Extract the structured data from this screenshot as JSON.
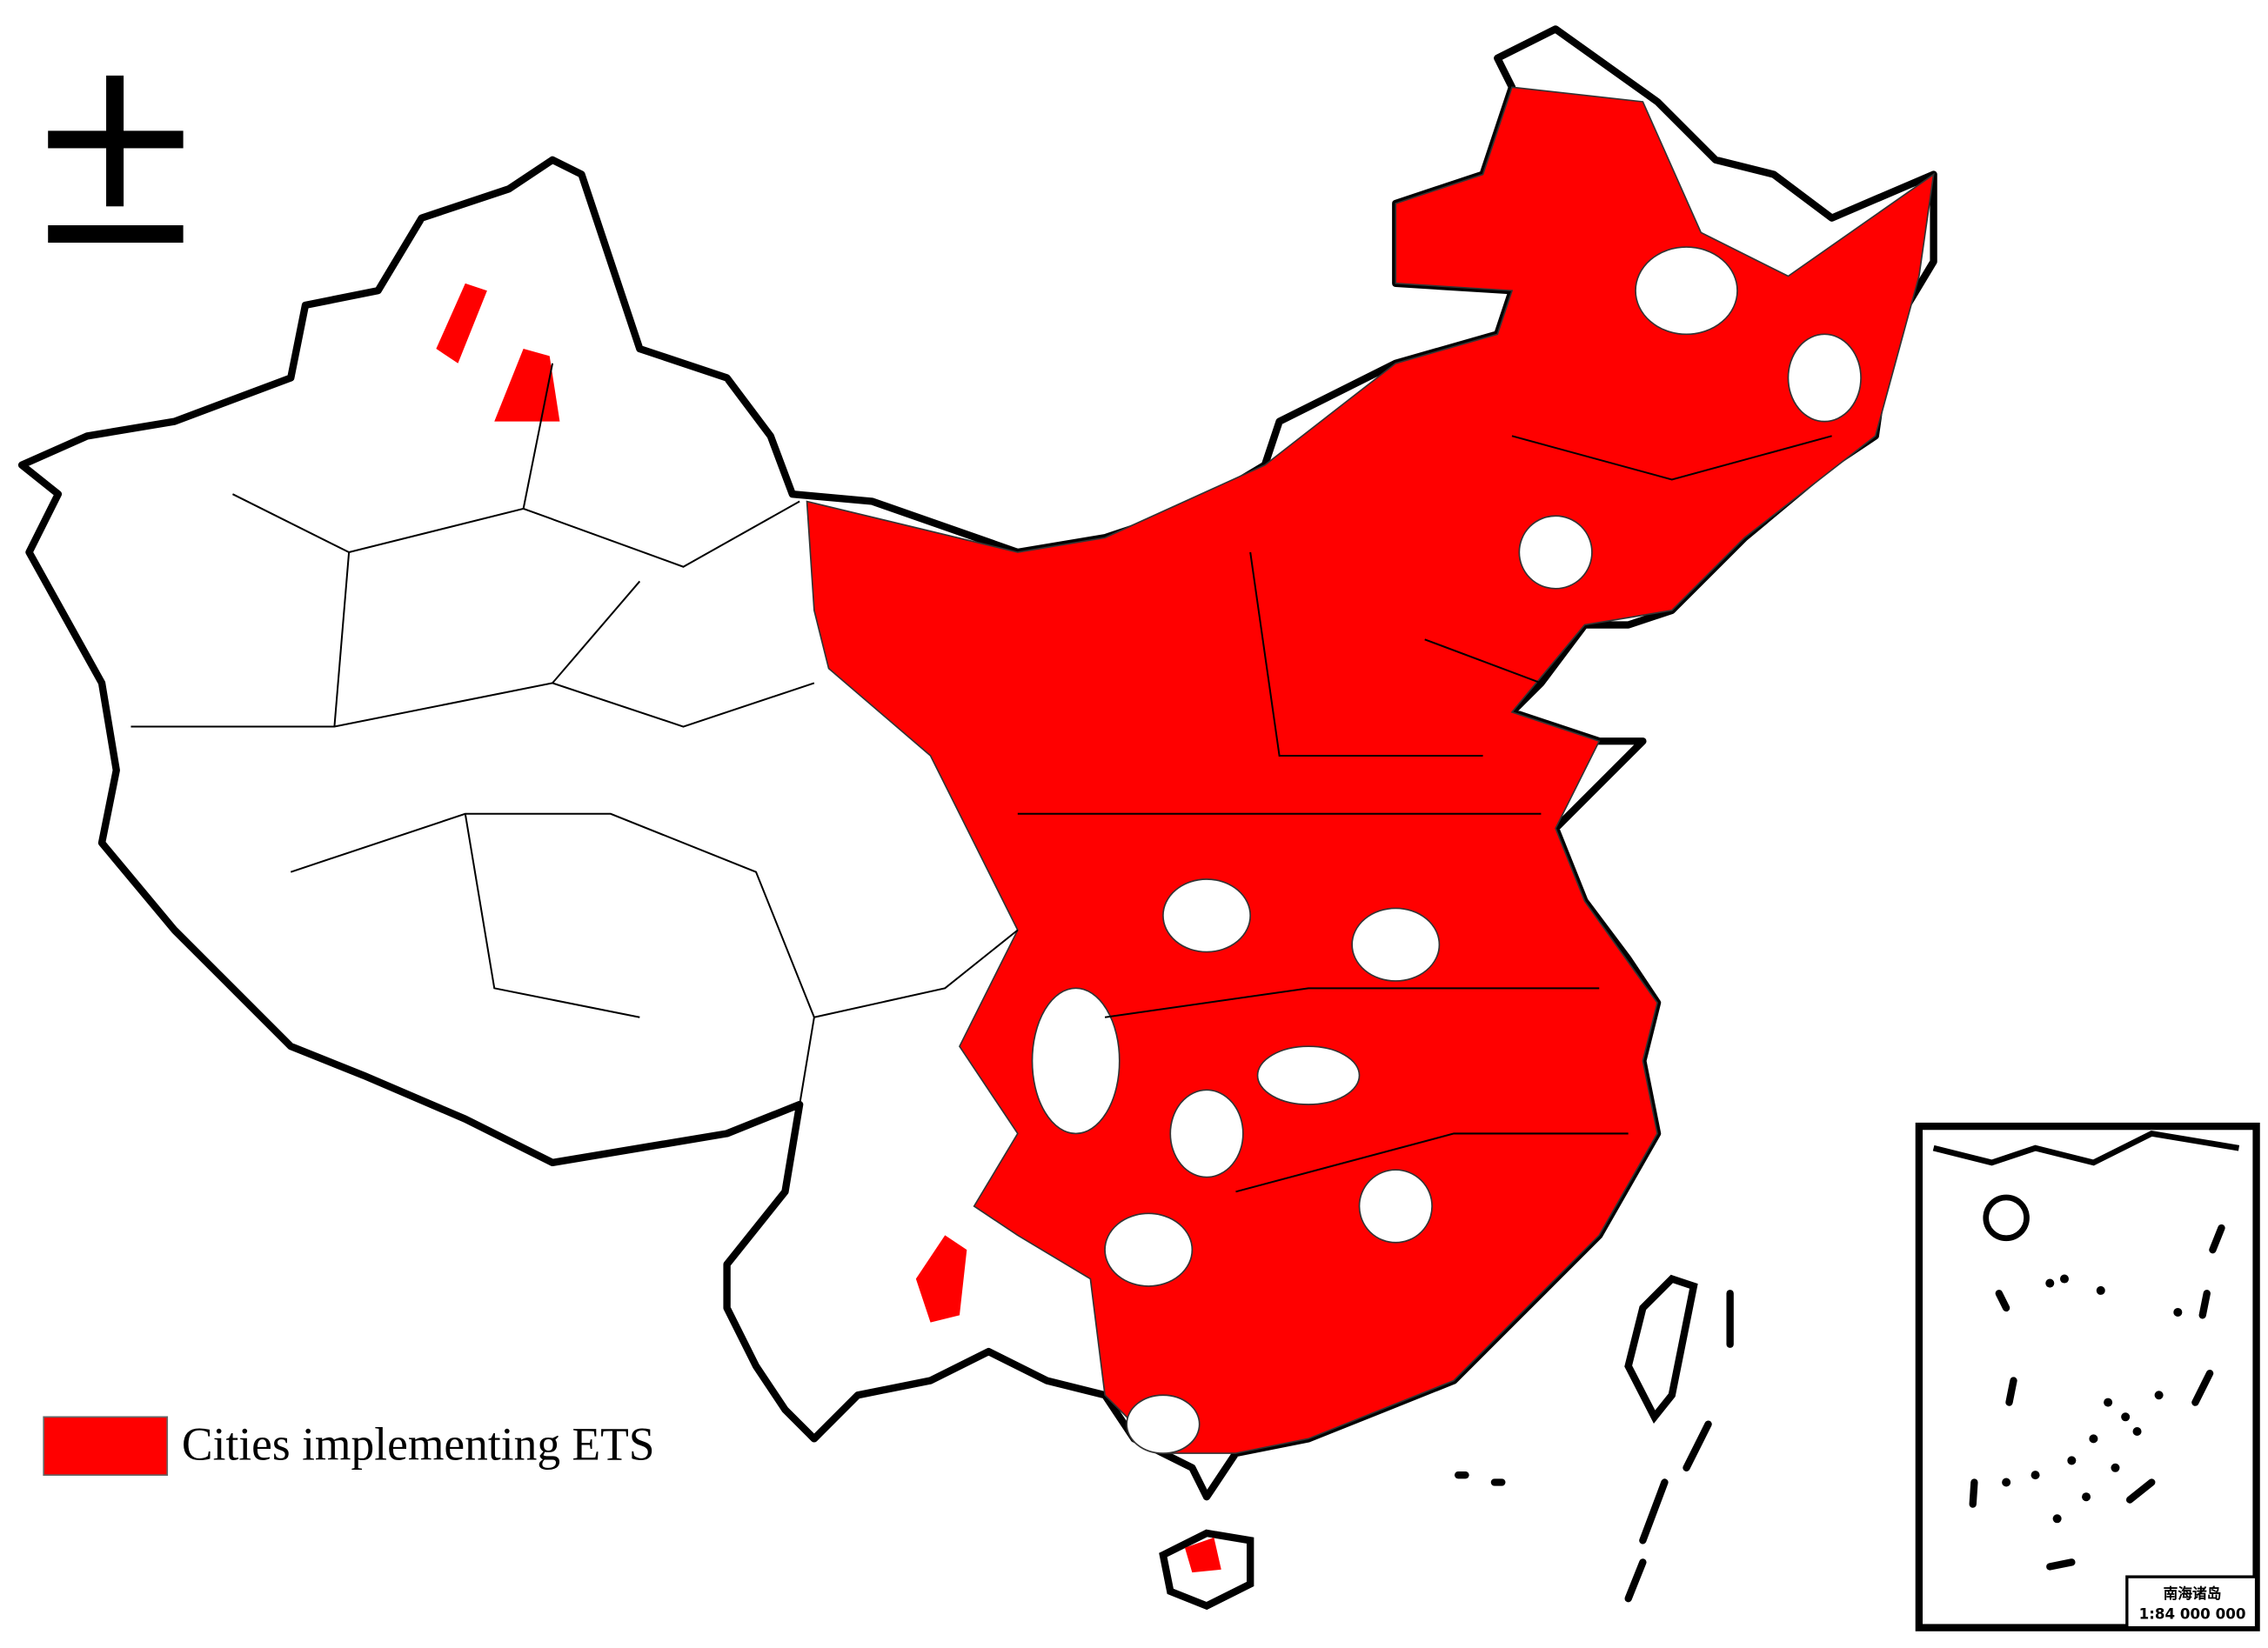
{
  "legend": {
    "label": "Cities implementing ETS",
    "color": "#ff0000"
  },
  "inset": {
    "title": "南海诸岛",
    "scale": "1:84 000 000"
  }
}
